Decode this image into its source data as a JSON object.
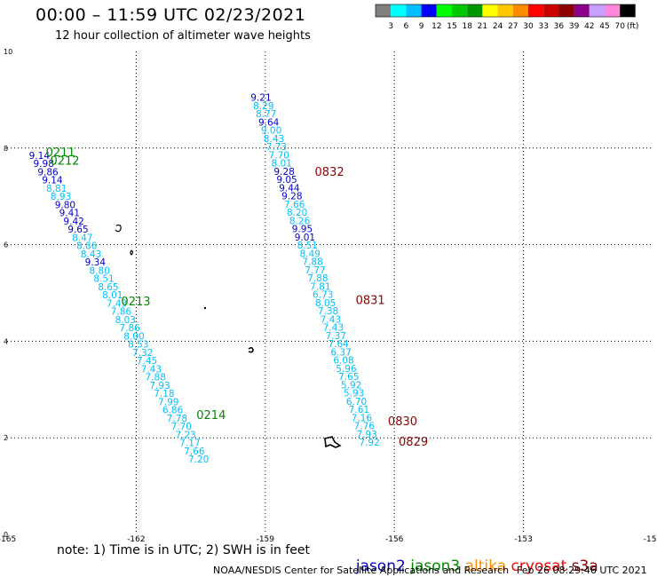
{
  "header": {
    "title": "00:00 – 11:59 UTC 02/23/2021",
    "subtitle": "12 hour collection of altimeter wave heights"
  },
  "scale": {
    "labels": [
      "3",
      "6",
      "9",
      "12",
      "15",
      "18",
      "21",
      "24",
      "27",
      "30",
      "33",
      "36",
      "39",
      "42",
      "45",
      "70"
    ],
    "unit": "(ft)",
    "colors": [
      "#7f7f7f",
      "#00ffff",
      "#00bfff",
      "#0000ff",
      "#00ff00",
      "#00c800",
      "#009600",
      "#ffff00",
      "#ffc800",
      "#ff8c00",
      "#ff0000",
      "#c80000",
      "#8b0000",
      "#8b008b",
      "#c8a0ff",
      "#ff88dd",
      "#000000"
    ]
  },
  "note": "note: 1) Time is in UTC; 2) SWH is in feet",
  "satellites": [
    {
      "name": "jason2",
      "color": "#0000cd"
    },
    {
      "name": "jason3",
      "color": "#008800"
    },
    {
      "name": "altika",
      "color": "#ff8c00"
    },
    {
      "name": "cryosat",
      "color": "#ff0000"
    },
    {
      "name": "s3a",
      "color": "#8b0000"
    }
  ],
  "footer": {
    "left": "NOAA/NESDIS Center for Satellite Applications and Research",
    "right": "Feb 26 08:29:46 UTC 2021"
  },
  "chart_data": {
    "type": "scatter",
    "xlim": [
      -165,
      -150
    ],
    "ylim": [
      0,
      10
    ],
    "x_ticks": [
      "-165",
      "-162",
      "-159",
      "-156",
      "-153",
      "-150"
    ],
    "y_ticks": [
      "0",
      "2",
      "4",
      "6",
      "8",
      "10"
    ],
    "grid": true,
    "colors": {
      "deep": "#0000cd",
      "light": "#00bfff",
      "jason3": "#008800",
      "s3a": "#8b0000"
    },
    "tracks": [
      {
        "name": "track-1",
        "points": [
          {
            "x": -164.25,
            "y": 7.85,
            "v": "9.14",
            "c": "deep"
          },
          {
            "x": -164.15,
            "y": 7.68,
            "v": "9.98",
            "c": "deep"
          },
          {
            "x": -164.05,
            "y": 7.51,
            "v": "9.86",
            "c": "deep"
          },
          {
            "x": -163.95,
            "y": 7.34,
            "v": "9.14",
            "c": "deep"
          },
          {
            "x": -163.85,
            "y": 7.17,
            "v": "8.81",
            "c": "light"
          },
          {
            "x": -163.75,
            "y": 7.0,
            "v": "8.93",
            "c": "light"
          },
          {
            "x": -163.65,
            "y": 6.83,
            "v": "9.80",
            "c": "deep"
          },
          {
            "x": -163.55,
            "y": 6.66,
            "v": "9.41",
            "c": "deep"
          },
          {
            "x": -163.45,
            "y": 6.49,
            "v": "9.42",
            "c": "deep"
          },
          {
            "x": -163.35,
            "y": 6.32,
            "v": "9.65",
            "c": "deep"
          },
          {
            "x": -163.25,
            "y": 6.15,
            "v": "8.47",
            "c": "light"
          },
          {
            "x": -163.15,
            "y": 5.98,
            "v": "8.86",
            "c": "light"
          },
          {
            "x": -163.05,
            "y": 5.81,
            "v": "8.43",
            "c": "light"
          },
          {
            "x": -162.95,
            "y": 5.64,
            "v": "9.34",
            "c": "deep"
          },
          {
            "x": -162.85,
            "y": 5.47,
            "v": "8.80",
            "c": "light"
          },
          {
            "x": -162.75,
            "y": 5.3,
            "v": "8.51",
            "c": "light"
          },
          {
            "x": -162.65,
            "y": 5.13,
            "v": "8.65",
            "c": "light"
          },
          {
            "x": -162.55,
            "y": 4.96,
            "v": "8.01",
            "c": "light"
          },
          {
            "x": -162.45,
            "y": 4.79,
            "v": "7.43",
            "c": "light"
          },
          {
            "x": -162.35,
            "y": 4.62,
            "v": "7.86",
            "c": "light"
          },
          {
            "x": -162.25,
            "y": 4.45,
            "v": "8.03",
            "c": "light"
          },
          {
            "x": -162.15,
            "y": 4.28,
            "v": "7.86",
            "c": "light"
          },
          {
            "x": -162.05,
            "y": 4.11,
            "v": "8.00",
            "c": "light"
          },
          {
            "x": -161.95,
            "y": 3.94,
            "v": "8.53",
            "c": "light"
          },
          {
            "x": -161.85,
            "y": 3.77,
            "v": "7.32",
            "c": "light"
          },
          {
            "x": -161.75,
            "y": 3.6,
            "v": "7.45",
            "c": "light"
          },
          {
            "x": -161.65,
            "y": 3.43,
            "v": "7.43",
            "c": "light"
          },
          {
            "x": -161.55,
            "y": 3.26,
            "v": "7.88",
            "c": "light"
          },
          {
            "x": -161.45,
            "y": 3.09,
            "v": "7.93",
            "c": "light"
          },
          {
            "x": -161.35,
            "y": 2.92,
            "v": "7.18",
            "c": "light"
          },
          {
            "x": -161.25,
            "y": 2.75,
            "v": "7.99",
            "c": "light"
          },
          {
            "x": -161.15,
            "y": 2.58,
            "v": "6.86",
            "c": "light"
          },
          {
            "x": -161.05,
            "y": 2.41,
            "v": "7.78",
            "c": "light"
          },
          {
            "x": -160.95,
            "y": 2.24,
            "v": "7.70",
            "c": "light"
          },
          {
            "x": -160.85,
            "y": 2.07,
            "v": "7.23",
            "c": "light"
          },
          {
            "x": -160.75,
            "y": 1.9,
            "v": "7.17",
            "c": "light"
          },
          {
            "x": -160.65,
            "y": 1.73,
            "v": "7.66",
            "c": "light"
          },
          {
            "x": -160.55,
            "y": 1.56,
            "v": "7.20",
            "c": "light"
          }
        ]
      },
      {
        "name": "track-2",
        "points": [
          {
            "x": -159.1,
            "y": 9.05,
            "v": "9.21",
            "c": "deep"
          },
          {
            "x": -159.04,
            "y": 8.88,
            "v": "8.29",
            "c": "light"
          },
          {
            "x": -158.98,
            "y": 8.71,
            "v": "8.77",
            "c": "light"
          },
          {
            "x": -158.92,
            "y": 8.54,
            "v": "9.64",
            "c": "deep"
          },
          {
            "x": -158.86,
            "y": 8.37,
            "v": "9.00",
            "c": "light"
          },
          {
            "x": -158.8,
            "y": 8.2,
            "v": "8.43",
            "c": "light"
          },
          {
            "x": -158.74,
            "y": 8.03,
            "v": "7.73",
            "c": "light"
          },
          {
            "x": -158.68,
            "y": 7.86,
            "v": "7.70",
            "c": "light"
          },
          {
            "x": -158.62,
            "y": 7.69,
            "v": "8.01",
            "c": "light"
          },
          {
            "x": -158.56,
            "y": 7.52,
            "v": "9.28",
            "c": "deep"
          },
          {
            "x": -158.5,
            "y": 7.35,
            "v": "9.05",
            "c": "deep"
          },
          {
            "x": -158.44,
            "y": 7.18,
            "v": "9.44",
            "c": "deep"
          },
          {
            "x": -158.38,
            "y": 7.01,
            "v": "9.28",
            "c": "deep"
          },
          {
            "x": -158.32,
            "y": 6.84,
            "v": "7.66",
            "c": "light"
          },
          {
            "x": -158.26,
            "y": 6.67,
            "v": "8.20",
            "c": "light"
          },
          {
            "x": -158.2,
            "y": 6.5,
            "v": "8.26",
            "c": "light"
          },
          {
            "x": -158.14,
            "y": 6.33,
            "v": "9.95",
            "c": "deep"
          },
          {
            "x": -158.08,
            "y": 6.16,
            "v": "9.01",
            "c": "deep"
          },
          {
            "x": -158.02,
            "y": 5.99,
            "v": "8.51",
            "c": "light"
          },
          {
            "x": -157.96,
            "y": 5.82,
            "v": "8.49",
            "c": "light"
          },
          {
            "x": -157.9,
            "y": 5.65,
            "v": "7.88",
            "c": "light"
          },
          {
            "x": -157.84,
            "y": 5.48,
            "v": "7.77",
            "c": "light"
          },
          {
            "x": -157.78,
            "y": 5.31,
            "v": "7.88",
            "c": "light"
          },
          {
            "x": -157.72,
            "y": 5.14,
            "v": "7.81",
            "c": "light"
          },
          {
            "x": -157.66,
            "y": 4.97,
            "v": "6.73",
            "c": "light"
          },
          {
            "x": -157.6,
            "y": 4.8,
            "v": "8.05",
            "c": "light"
          },
          {
            "x": -157.54,
            "y": 4.63,
            "v": "7.38",
            "c": "light"
          },
          {
            "x": -157.48,
            "y": 4.46,
            "v": "7.43",
            "c": "light"
          },
          {
            "x": -157.42,
            "y": 4.29,
            "v": "7.43",
            "c": "light"
          },
          {
            "x": -157.36,
            "y": 4.12,
            "v": "7.37",
            "c": "light"
          },
          {
            "x": -157.3,
            "y": 3.95,
            "v": "7.64",
            "c": "light"
          },
          {
            "x": -157.24,
            "y": 3.78,
            "v": "6.37",
            "c": "light"
          },
          {
            "x": -157.18,
            "y": 3.61,
            "v": "6.08",
            "c": "light"
          },
          {
            "x": -157.12,
            "y": 3.44,
            "v": "5.96",
            "c": "light"
          },
          {
            "x": -157.06,
            "y": 3.27,
            "v": "7.65",
            "c": "light"
          },
          {
            "x": -157.0,
            "y": 3.1,
            "v": "5.92",
            "c": "light"
          },
          {
            "x": -156.94,
            "y": 2.93,
            "v": "5.93",
            "c": "light"
          },
          {
            "x": -156.88,
            "y": 2.76,
            "v": "6.70",
            "c": "light"
          },
          {
            "x": -156.82,
            "y": 2.59,
            "v": "7.61",
            "c": "light"
          },
          {
            "x": -156.76,
            "y": 2.42,
            "v": "7.16",
            "c": "light"
          },
          {
            "x": -156.7,
            "y": 2.25,
            "v": "7.76",
            "c": "light"
          },
          {
            "x": -156.64,
            "y": 2.08,
            "v": "7.93",
            "c": "light"
          },
          {
            "x": -156.58,
            "y": 1.91,
            "v": "7.92",
            "c": "light"
          }
        ]
      }
    ],
    "time_labels": [
      {
        "x": -164.1,
        "y": 7.92,
        "v": "0211",
        "c": "jason3"
      },
      {
        "x": -164.0,
        "y": 7.75,
        "v": "0212",
        "c": "jason3"
      },
      {
        "x": -162.35,
        "y": 4.83,
        "v": "0213",
        "c": "jason3"
      },
      {
        "x": -160.6,
        "y": 2.48,
        "v": "0214",
        "c": "jason3"
      },
      {
        "x": -157.85,
        "y": 7.52,
        "v": "0832",
        "c": "s3a"
      },
      {
        "x": -156.9,
        "y": 4.86,
        "v": "0831",
        "c": "s3a"
      },
      {
        "x": -156.15,
        "y": 2.35,
        "v": "0830",
        "c": "s3a"
      },
      {
        "x": -155.9,
        "y": 1.93,
        "v": "0829",
        "c": "s3a"
      }
    ]
  }
}
